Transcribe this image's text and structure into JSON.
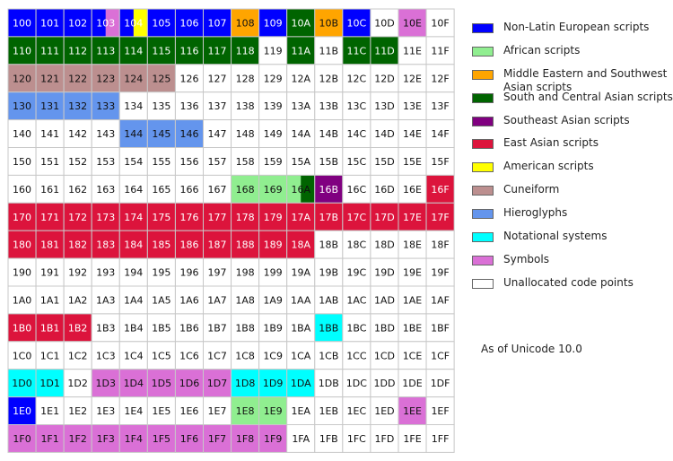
{
  "chart_data": {
    "type": "heatmap",
    "title": "",
    "columns": [
      "0",
      "1",
      "2",
      "3",
      "4",
      "5",
      "6",
      "7",
      "8",
      "9",
      "A",
      "B",
      "C",
      "D",
      "E",
      "F"
    ],
    "rows": [
      "10",
      "11",
      "12",
      "13",
      "14",
      "15",
      "16",
      "17",
      "18",
      "19",
      "1A",
      "1B",
      "1C",
      "1D",
      "1E",
      "1F"
    ],
    "categories": [
      {
        "key": "E",
        "label": "Non-Latin European scripts",
        "color": "#0000ff"
      },
      {
        "key": "A",
        "label": "African scripts",
        "color": "#90ee90"
      },
      {
        "key": "M",
        "label": "Middle Eastern and Southwest Asian scripts",
        "color": "#ffa500"
      },
      {
        "key": "S",
        "label": "South and Central Asian scripts",
        "color": "#006400"
      },
      {
        "key": "T",
        "label": "Southeast Asian scripts",
        "color": "#800080"
      },
      {
        "key": "K",
        "label": "East Asian scripts",
        "color": "#dc143c"
      },
      {
        "key": "Y",
        "label": "American scripts",
        "color": "#ffff00"
      },
      {
        "key": "C",
        "label": "Cuneiform",
        "color": "#bc8f8f"
      },
      {
        "key": "H",
        "label": "Hieroglyphs",
        "color": "#6495ed"
      },
      {
        "key": "N",
        "label": "Notational systems",
        "color": "#00ffff"
      },
      {
        "key": "X",
        "label": "Symbols",
        "color": "#da70d6"
      },
      {
        "key": "U",
        "label": "Unallocated code points",
        "color": "#ffffff"
      }
    ],
    "cells": [
      [
        "E",
        "E",
        "E",
        "EX",
        "EY",
        "E",
        "E",
        "E",
        "M",
        "E",
        "S",
        "M",
        "E",
        "U",
        "X",
        "U"
      ],
      [
        "S",
        "S",
        "S",
        "S",
        "S",
        "S",
        "S",
        "S",
        "S",
        "U",
        "S",
        "U",
        "S",
        "S",
        "U",
        "U"
      ],
      [
        "C",
        "C",
        "C",
        "C",
        "C",
        "C",
        "U",
        "U",
        "U",
        "U",
        "U",
        "U",
        "U",
        "U",
        "U",
        "U"
      ],
      [
        "H",
        "H",
        "H",
        "H",
        "U",
        "U",
        "U",
        "U",
        "U",
        "U",
        "U",
        "U",
        "U",
        "U",
        "U",
        "U"
      ],
      [
        "U",
        "U",
        "U",
        "U",
        "H",
        "H",
        "H",
        "U",
        "U",
        "U",
        "U",
        "U",
        "U",
        "U",
        "U",
        "U"
      ],
      [
        "U",
        "U",
        "U",
        "U",
        "U",
        "U",
        "U",
        "U",
        "U",
        "U",
        "U",
        "U",
        "U",
        "U",
        "U",
        "U"
      ],
      [
        "U",
        "U",
        "U",
        "U",
        "U",
        "U",
        "U",
        "U",
        "A",
        "A",
        "AS",
        "T",
        "U",
        "U",
        "U",
        "K"
      ],
      [
        "K",
        "K",
        "K",
        "K",
        "K",
        "K",
        "K",
        "K",
        "K",
        "K",
        "K",
        "K",
        "K",
        "K",
        "K",
        "K"
      ],
      [
        "K",
        "K",
        "K",
        "K",
        "K",
        "K",
        "K",
        "K",
        "K",
        "K",
        "K",
        "U",
        "U",
        "U",
        "U",
        "U"
      ],
      [
        "U",
        "U",
        "U",
        "U",
        "U",
        "U",
        "U",
        "U",
        "U",
        "U",
        "U",
        "U",
        "U",
        "U",
        "U",
        "U"
      ],
      [
        "U",
        "U",
        "U",
        "U",
        "U",
        "U",
        "U",
        "U",
        "U",
        "U",
        "U",
        "U",
        "U",
        "U",
        "U",
        "U"
      ],
      [
        "K",
        "K",
        "K",
        "U",
        "U",
        "U",
        "U",
        "U",
        "U",
        "U",
        "U",
        "N",
        "U",
        "U",
        "U",
        "U"
      ],
      [
        "U",
        "U",
        "U",
        "U",
        "U",
        "U",
        "U",
        "U",
        "U",
        "U",
        "U",
        "U",
        "U",
        "U",
        "U",
        "U"
      ],
      [
        "N",
        "N",
        "U",
        "X",
        "X",
        "X",
        "X",
        "X",
        "N",
        "N",
        "N",
        "U",
        "U",
        "U",
        "U",
        "U"
      ],
      [
        "E",
        "U",
        "U",
        "U",
        "U",
        "U",
        "U",
        "U",
        "A",
        "A",
        "U",
        "U",
        "U",
        "U",
        "X",
        "U"
      ],
      [
        "X",
        "X",
        "X",
        "X",
        "X",
        "X",
        "X",
        "X",
        "X",
        "X",
        "U",
        "U",
        "U",
        "U",
        "U",
        "U"
      ]
    ],
    "note": "As of Unicode 10.0"
  }
}
